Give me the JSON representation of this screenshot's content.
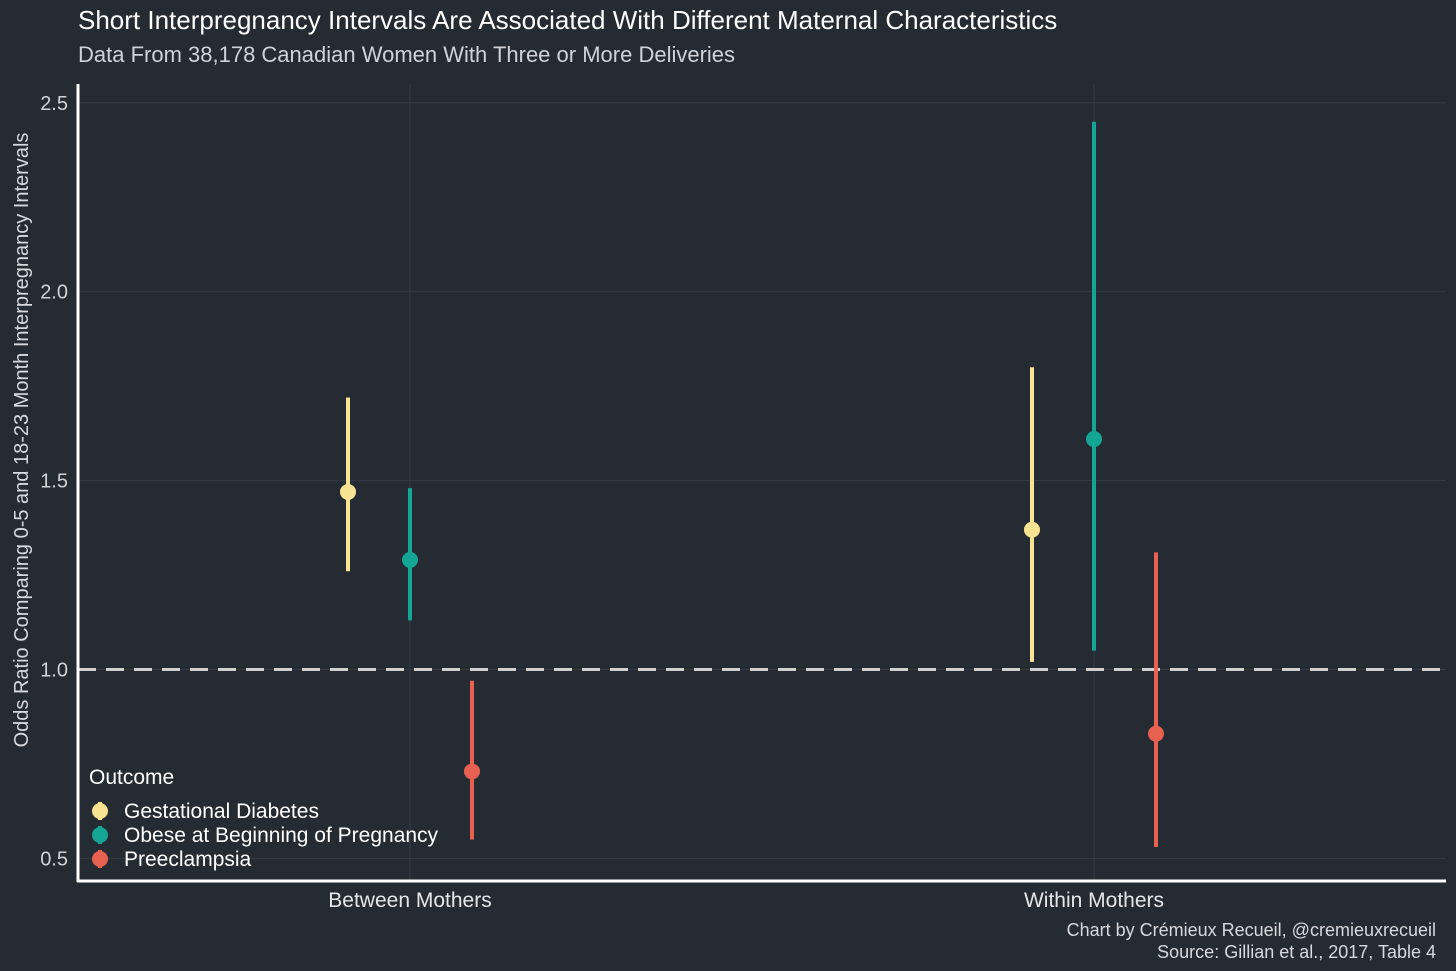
{
  "chart_data": {
    "type": "pointrange",
    "title": "Short Interpregnancy Intervals Are Associated With Different Maternal Characteristics",
    "subtitle": "Data From 38,178 Canadian Women With Three or More Deliveries",
    "xlabel": "",
    "ylabel": "Odds Ratio Comparing 0-5 and 18-23 Month Interpregnancy Intervals",
    "ylim": [
      0.44,
      2.55
    ],
    "yticks": [
      "0.5",
      "1.0",
      "1.5",
      "2.0",
      "2.5"
    ],
    "reference_line": 1.0,
    "categories": [
      "Between Mothers",
      "Within Mothers"
    ],
    "legend": {
      "title": "Outcome",
      "position": "bottom-left"
    },
    "series": [
      {
        "name": "Gestational Diabetes",
        "color": "#f7e391",
        "points": [
          {
            "category": "Between Mothers",
            "estimate": 1.47,
            "lower": 1.26,
            "upper": 1.72
          },
          {
            "category": "Within Mothers",
            "estimate": 1.37,
            "lower": 1.02,
            "upper": 1.8
          }
        ]
      },
      {
        "name": "Obese at Beginning of Pregnancy",
        "color": "#14a594",
        "points": [
          {
            "category": "Between Mothers",
            "estimate": 1.29,
            "lower": 1.13,
            "upper": 1.48
          },
          {
            "category": "Within Mothers",
            "estimate": 1.61,
            "lower": 1.05,
            "upper": 2.45
          }
        ]
      },
      {
        "name": "Preeclampsia",
        "color": "#e8604f",
        "points": [
          {
            "category": "Between Mothers",
            "estimate": 0.73,
            "lower": 0.55,
            "upper": 0.97
          },
          {
            "category": "Within Mothers",
            "estimate": 0.83,
            "lower": 0.53,
            "upper": 1.31
          }
        ]
      }
    ]
  },
  "caption": {
    "line1": "Chart by Crémieux Recueil, @cremieuxrecueil",
    "line2": "Source: Gillian et al., 2017, Table 4"
  },
  "colors": {
    "background": "#252b33",
    "axis": "#ffffff",
    "grid": "#363d47",
    "reference_line": "#d0d0d0"
  }
}
